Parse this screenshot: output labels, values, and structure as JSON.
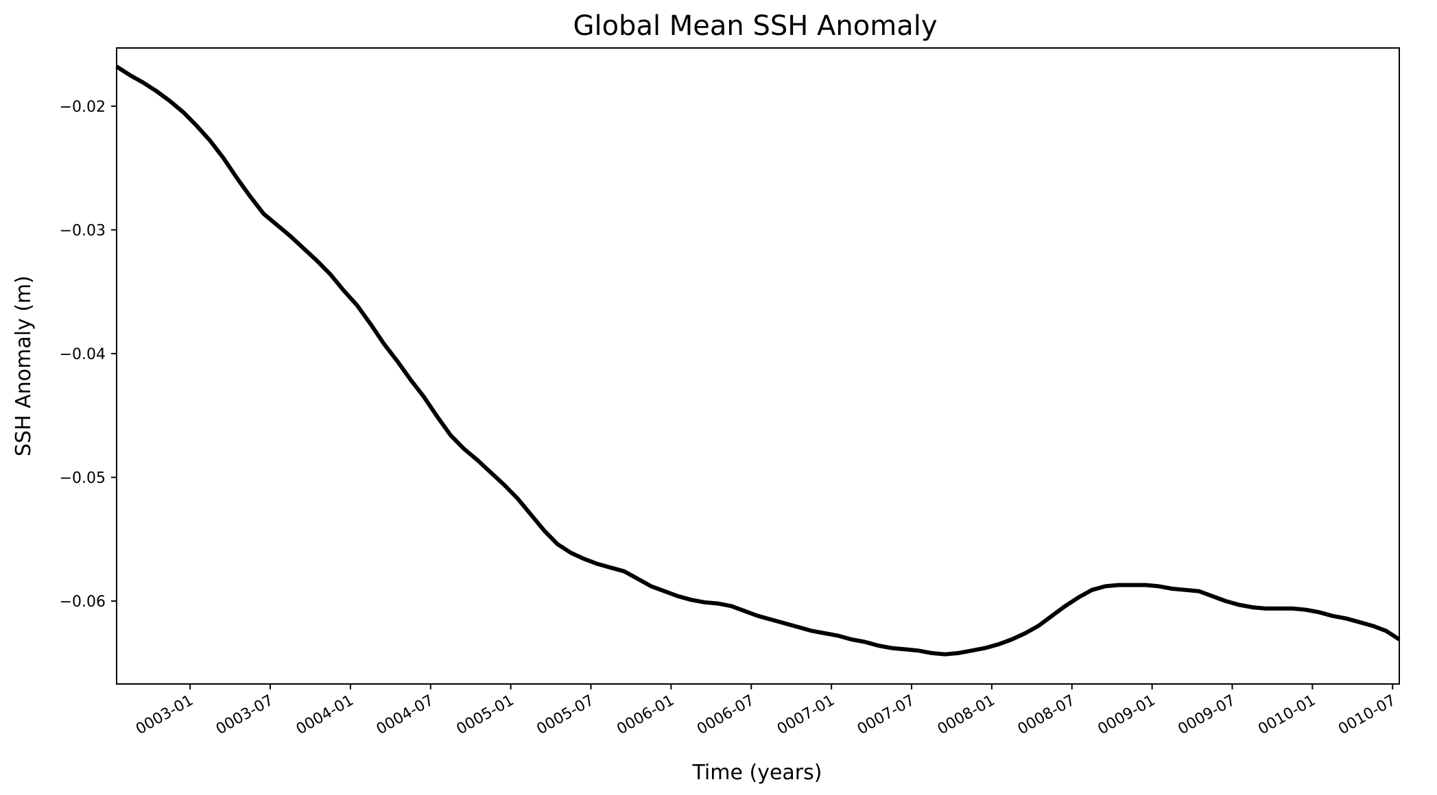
{
  "chart_data": {
    "type": "line",
    "title": "Global Mean SSH Anomaly",
    "xlabel": "Time (years)",
    "ylabel": "SSH Anomaly (m)",
    "x_axis_type": "date",
    "xlim": [
      "0002-07-16",
      "0010-07-16"
    ],
    "ylim": [
      -0.0667,
      -0.0153
    ],
    "grid": false,
    "legend": "none",
    "line_color": "#000000",
    "x_ticks": [
      "0003-01",
      "0003-07",
      "0004-01",
      "0004-07",
      "0005-01",
      "0005-07",
      "0006-01",
      "0006-07",
      "0007-01",
      "0007-07",
      "0008-01",
      "0008-07",
      "0009-01",
      "0009-07",
      "0010-01",
      "0010-07"
    ],
    "y_ticks": [
      -0.02,
      -0.03,
      -0.04,
      -0.05,
      -0.06
    ],
    "y_tick_labels": [
      "−0.02",
      "−0.03",
      "−0.04",
      "−0.05",
      "−0.06"
    ],
    "series": [
      {
        "x": [
          "0002-07-16",
          "0002-08-16",
          "0002-09-16",
          "0002-10-16",
          "0002-11-16",
          "0002-12-16",
          "0003-01-16",
          "0003-02-16",
          "0003-03-16",
          "0003-04-16",
          "0003-05-16",
          "0003-06-16",
          "0003-07-16",
          "0003-08-16",
          "0003-09-16",
          "0003-10-16",
          "0003-11-16",
          "0003-12-16",
          "0004-01-16",
          "0004-02-16",
          "0004-03-16",
          "0004-04-16",
          "0004-05-16",
          "0004-06-16",
          "0004-07-16",
          "0004-08-16",
          "0004-09-16",
          "0004-10-16",
          "0004-11-16",
          "0004-12-16",
          "0005-01-16",
          "0005-02-16",
          "0005-03-16",
          "0005-04-16",
          "0005-05-16",
          "0005-06-16",
          "0005-07-16",
          "0005-08-16",
          "0005-09-16",
          "0005-10-16",
          "0005-11-16",
          "0005-12-16",
          "0006-01-16",
          "0006-02-16",
          "0006-03-16",
          "0006-04-16",
          "0006-05-16",
          "0006-06-16",
          "0006-07-16",
          "0006-08-16",
          "0006-09-16",
          "0006-10-16",
          "0006-11-16",
          "0006-12-16",
          "0007-01-16",
          "0007-02-16",
          "0007-03-16",
          "0007-04-16",
          "0007-05-16",
          "0007-06-16",
          "0007-07-16",
          "0007-08-16",
          "0007-09-16",
          "0007-10-16",
          "0007-11-16",
          "0007-12-16",
          "0008-01-16",
          "0008-02-16",
          "0008-03-16",
          "0008-04-16",
          "0008-05-16",
          "0008-06-16",
          "0008-07-16",
          "0008-08-16",
          "0008-09-16",
          "0008-10-16",
          "0008-11-16",
          "0008-12-16",
          "0009-01-16",
          "0009-02-16",
          "0009-03-16",
          "0009-04-16",
          "0009-05-16",
          "0009-06-16",
          "0009-07-16",
          "0009-08-16",
          "0009-09-16",
          "0009-10-16",
          "0009-11-16",
          "0009-12-16",
          "0010-01-16",
          "0010-02-16",
          "0010-03-16",
          "0010-04-16",
          "0010-05-16",
          "0010-06-16",
          "0010-07-16"
        ],
        "y": [
          -0.0168,
          -0.0175,
          -0.0181,
          -0.0188,
          -0.0196,
          -0.0205,
          -0.0216,
          -0.0228,
          -0.0242,
          -0.0258,
          -0.0273,
          -0.0287,
          -0.0296,
          -0.0305,
          -0.0315,
          -0.0325,
          -0.0336,
          -0.0349,
          -0.0361,
          -0.0376,
          -0.0392,
          -0.0406,
          -0.0421,
          -0.0435,
          -0.0451,
          -0.0466,
          -0.0477,
          -0.0486,
          -0.0496,
          -0.0506,
          -0.0517,
          -0.053,
          -0.0543,
          -0.0554,
          -0.0561,
          -0.0566,
          -0.057,
          -0.0573,
          -0.0576,
          -0.0582,
          -0.0588,
          -0.0592,
          -0.0596,
          -0.0599,
          -0.0601,
          -0.0602,
          -0.0604,
          -0.0608,
          -0.0612,
          -0.0615,
          -0.0618,
          -0.0621,
          -0.0624,
          -0.0626,
          -0.0628,
          -0.0631,
          -0.0633,
          -0.0636,
          -0.0638,
          -0.0639,
          -0.064,
          -0.0642,
          -0.0643,
          -0.0642,
          -0.064,
          -0.0638,
          -0.0635,
          -0.0631,
          -0.0626,
          -0.062,
          -0.0612,
          -0.0604,
          -0.0597,
          -0.0591,
          -0.0588,
          -0.0587,
          -0.0587,
          -0.0587,
          -0.0588,
          -0.059,
          -0.0591,
          -0.0592,
          -0.0596,
          -0.06,
          -0.0603,
          -0.0605,
          -0.0606,
          -0.0606,
          -0.0606,
          -0.0607,
          -0.0609,
          -0.0612,
          -0.0614,
          -0.0617,
          -0.062,
          -0.0624,
          -0.0631
        ]
      }
    ]
  }
}
